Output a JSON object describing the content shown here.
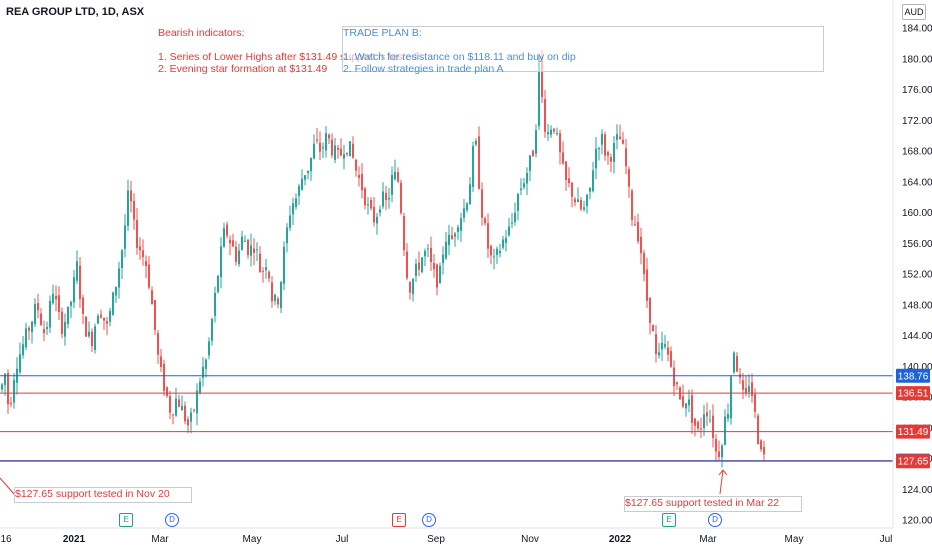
{
  "header": {
    "symbol": "REA GROUP LTD, 1D, ASX",
    "currency": "AUD"
  },
  "annotations": {
    "bearish": "Bearish indicators:\n\n1. Series of Lower Highs after $131.49 support is tested\n2. Evening star formation at $131.49",
    "trade_plan": "TRADE PLAN B:\n\n1. Watch for resistance on $118.11 and buy on dip\n2. Follow strategies in trade plan A",
    "support_left": "$127.65 support tested in Nov 20",
    "support_right": "$127.65 support tested in Mar 22"
  },
  "colors": {
    "up": "#26a69a",
    "down": "#ef5350",
    "red_line": "#e53935",
    "blue_line": "#1e63d6"
  },
  "chart_data": {
    "type": "candlestick",
    "title": "REA GROUP LTD, 1D, ASX",
    "currency": "AUD",
    "ylim": [
      119,
      185
    ],
    "y_ticks": [
      120,
      124,
      128,
      132,
      136,
      140,
      144,
      148,
      152,
      156,
      160,
      164,
      168,
      172,
      176,
      180,
      184
    ],
    "x_ticks": [
      "16",
      "2021",
      "Mar",
      "May",
      "Jul",
      "Sep",
      "Nov",
      "2022",
      "Mar",
      "May",
      "Jul"
    ],
    "horizontal_levels": [
      {
        "label": "138.76",
        "value": 138.76,
        "color": "#1e63d6"
      },
      {
        "label": "136.51",
        "value": 136.51,
        "color": "#e53935"
      },
      {
        "label": "131.49",
        "value": 131.49,
        "color": "#e53935"
      },
      {
        "label": "127.73",
        "value": 127.73,
        "color": "#1e63d6"
      },
      {
        "label": "127.65",
        "value": 127.65,
        "color": "#e53935"
      }
    ],
    "price_path": [
      [
        0,
        137
      ],
      [
        4,
        139
      ],
      [
        8,
        134
      ],
      [
        14,
        140
      ],
      [
        20,
        142
      ],
      [
        28,
        145
      ],
      [
        36,
        148
      ],
      [
        44,
        144
      ],
      [
        52,
        150
      ],
      [
        60,
        145
      ],
      [
        68,
        147
      ],
      [
        76,
        153
      ],
      [
        82,
        146
      ],
      [
        90,
        143
      ],
      [
        98,
        148
      ],
      [
        106,
        145
      ],
      [
        114,
        150
      ],
      [
        122,
        156
      ],
      [
        128,
        163
      ],
      [
        134,
        157
      ],
      [
        140,
        155
      ],
      [
        146,
        153
      ],
      [
        152,
        147
      ],
      [
        158,
        140
      ],
      [
        164,
        137
      ],
      [
        170,
        134
      ],
      [
        176,
        136
      ],
      [
        182,
        134
      ],
      [
        188,
        132
      ],
      [
        194,
        135
      ],
      [
        200,
        139
      ],
      [
        206,
        141
      ],
      [
        212,
        147
      ],
      [
        218,
        153
      ],
      [
        224,
        158
      ],
      [
        230,
        156
      ],
      [
        236,
        154
      ],
      [
        242,
        157
      ],
      [
        248,
        155
      ],
      [
        254,
        156
      ],
      [
        260,
        152
      ],
      [
        266,
        154
      ],
      [
        272,
        148
      ],
      [
        278,
        149
      ],
      [
        284,
        156
      ],
      [
        290,
        161
      ],
      [
        296,
        162
      ],
      [
        302,
        165
      ],
      [
        308,
        166
      ],
      [
        314,
        169
      ],
      [
        320,
        168
      ],
      [
        326,
        170
      ],
      [
        332,
        168
      ],
      [
        338,
        167
      ],
      [
        344,
        169
      ],
      [
        350,
        168
      ],
      [
        356,
        165
      ],
      [
        362,
        163
      ],
      [
        368,
        160
      ],
      [
        374,
        159
      ],
      [
        380,
        162
      ],
      [
        386,
        161
      ],
      [
        392,
        165
      ],
      [
        398,
        164
      ],
      [
        402,
        157
      ],
      [
        408,
        150
      ],
      [
        414,
        152
      ],
      [
        420,
        154
      ],
      [
        426,
        155
      ],
      [
        432,
        152
      ],
      [
        438,
        151
      ],
      [
        444,
        157
      ],
      [
        450,
        156
      ],
      [
        456,
        159
      ],
      [
        462,
        160
      ],
      [
        468,
        163
      ],
      [
        474,
        170
      ],
      [
        480,
        161
      ],
      [
        486,
        156
      ],
      [
        492,
        153
      ],
      [
        498,
        155
      ],
      [
        504,
        157
      ],
      [
        510,
        158
      ],
      [
        516,
        162
      ],
      [
        522,
        164
      ],
      [
        528,
        166
      ],
      [
        534,
        169
      ],
      [
        538,
        180
      ],
      [
        542,
        173
      ],
      [
        546,
        170
      ],
      [
        552,
        172
      ],
      [
        558,
        168
      ],
      [
        564,
        164
      ],
      [
        570,
        163
      ],
      [
        576,
        161
      ],
      [
        582,
        160
      ],
      [
        588,
        162
      ],
      [
        594,
        168
      ],
      [
        600,
        170
      ],
      [
        606,
        167
      ],
      [
        612,
        168
      ],
      [
        618,
        170
      ],
      [
        624,
        167
      ],
      [
        630,
        160
      ],
      [
        636,
        158
      ],
      [
        640,
        155
      ],
      [
        644,
        150
      ],
      [
        650,
        146
      ],
      [
        656,
        140
      ],
      [
        662,
        143
      ],
      [
        668,
        141
      ],
      [
        674,
        138
      ],
      [
        680,
        135
      ],
      [
        686,
        136
      ],
      [
        692,
        133
      ],
      [
        698,
        131
      ],
      [
        704,
        135
      ],
      [
        710,
        133
      ],
      [
        716,
        128
      ],
      [
        720,
        130
      ],
      [
        724,
        133
      ],
      [
        728,
        135
      ],
      [
        732,
        143
      ],
      [
        736,
        140
      ],
      [
        740,
        137
      ],
      [
        744,
        135
      ],
      [
        748,
        138
      ],
      [
        752,
        136
      ],
      [
        756,
        131
      ],
      [
        760,
        130
      ],
      [
        765,
        127
      ]
    ]
  }
}
